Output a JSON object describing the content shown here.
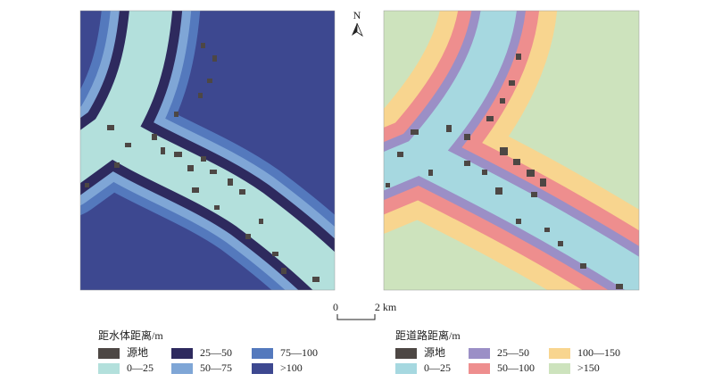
{
  "north_label": "N",
  "scale_bar": {
    "start": "0",
    "end": "2 km"
  },
  "legends": [
    {
      "title": "距水体距离/m",
      "items": [
        {
          "label": "源地",
          "color": "#4d4744"
        },
        {
          "label": "25—50",
          "color": "#2e2a5e"
        },
        {
          "label": "75—100",
          "color": "#5479bd"
        },
        {
          "label": "0—25",
          "color": "#b3e0dc"
        },
        {
          "label": "50—75",
          "color": "#7fa6d6"
        },
        {
          "label": ">100",
          "color": "#3d4890"
        }
      ]
    },
    {
      "title": "距道路距离/m",
      "items": [
        {
          "label": "源地",
          "color": "#4d4744"
        },
        {
          "label": "25—50",
          "color": "#9b8fc6"
        },
        {
          "label": "100—150",
          "color": "#f8d58f"
        },
        {
          "label": "0—25",
          "color": "#a6d8e0"
        },
        {
          "label": "50—100",
          "color": "#ee8e8e"
        },
        {
          "label": ">150",
          "color": "#cde3bd"
        }
      ]
    }
  ]
}
